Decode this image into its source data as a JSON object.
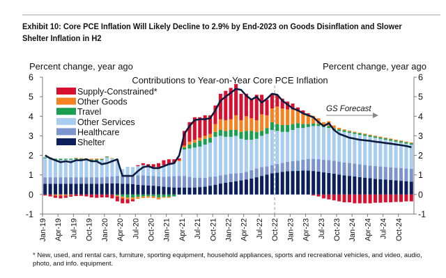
{
  "exhibit_title": "Exhibit 10: Core PCE Inflation Will Likely Decline to 2.9% by End-2023 on Goods Disinflation and Slower Shelter Inflation in H2",
  "footnote": "* New, used, and rental cars, furniture, sporting equipment, household appliances, sports and recreational vehicles, and video, audio, photo, and info. equipment.",
  "chart_data": {
    "type": "bar",
    "stacked": true,
    "title": "Contributions to Year-on-Year Core PCE Inflation",
    "ylabel_left": "Percent change, year ago",
    "ylabel_right": "Percent change, year ago",
    "ylim": [
      -1,
      6
    ],
    "yticks": [
      -1,
      0,
      1,
      2,
      3,
      4,
      5,
      6
    ],
    "legend_position": "top-left",
    "annotation": "GS Forecast",
    "forecast_start": "Oct-22",
    "x_start": "Jan-19",
    "x_end": "Dec-24",
    "xtick_labels": [
      "Jan-19",
      "Apr-19",
      "Jul-19",
      "Oct-19",
      "Jan-20",
      "Apr-20",
      "Jul-20",
      "Oct-20",
      "Jan-21",
      "Apr-21",
      "Jul-21",
      "Oct-21",
      "Jan-22",
      "Apr-22",
      "Jul-22",
      "Oct-22",
      "Jan-23",
      "Apr-23",
      "Jul-23",
      "Oct-23",
      "Jan-24",
      "Apr-24",
      "Jul-24",
      "Oct-24"
    ],
    "series": [
      {
        "name": "Shelter",
        "color": "#0b1f5c",
        "values": [
          0.55,
          0.55,
          0.55,
          0.55,
          0.55,
          0.55,
          0.55,
          0.55,
          0.55,
          0.55,
          0.55,
          0.55,
          0.57,
          0.57,
          0.57,
          0.55,
          0.55,
          0.53,
          0.5,
          0.48,
          0.46,
          0.45,
          0.42,
          0.4,
          0.38,
          0.36,
          0.35,
          0.35,
          0.35,
          0.36,
          0.38,
          0.4,
          0.45,
          0.5,
          0.56,
          0.6,
          0.64,
          0.68,
          0.72,
          0.77,
          0.82,
          0.88,
          0.95,
          1.02,
          1.08,
          1.12,
          1.16,
          1.19,
          1.2,
          1.21,
          1.22,
          1.22,
          1.2,
          1.17,
          1.13,
          1.1,
          1.06,
          1.02,
          0.98,
          0.95,
          0.92,
          0.89,
          0.86,
          0.83,
          0.8,
          0.78,
          0.76,
          0.74,
          0.72,
          0.7,
          0.68,
          0.66
        ]
      },
      {
        "name": "Healthcare",
        "color": "#7b95cd",
        "values": [
          0.33,
          0.33,
          0.33,
          0.33,
          0.33,
          0.33,
          0.33,
          0.33,
          0.33,
          0.33,
          0.33,
          0.33,
          0.33,
          0.35,
          0.38,
          0.4,
          0.42,
          0.45,
          0.48,
          0.5,
          0.5,
          0.5,
          0.5,
          0.5,
          0.55,
          0.58,
          0.6,
          0.6,
          0.55,
          0.5,
          0.48,
          0.45,
          0.45,
          0.42,
          0.42,
          0.42,
          0.42,
          0.4,
          0.38,
          0.38,
          0.42,
          0.45,
          0.45,
          0.42,
          0.42,
          0.44,
          0.46,
          0.48,
          0.5,
          0.52,
          0.55,
          0.6,
          0.62,
          0.64,
          0.65,
          0.66,
          0.66,
          0.66,
          0.66,
          0.66,
          0.66,
          0.66,
          0.65,
          0.65,
          0.65,
          0.65,
          0.65,
          0.65,
          0.65,
          0.65,
          0.65,
          0.65
        ]
      },
      {
        "name": "Other Services",
        "color": "#a9cdf0",
        "values": [
          0.97,
          0.95,
          0.9,
          0.88,
          0.9,
          0.9,
          0.92,
          0.92,
          0.92,
          0.85,
          0.85,
          0.88,
          1.0,
          0.93,
          0.85,
          0.35,
          0.45,
          0.42,
          0.47,
          0.52,
          0.49,
          0.45,
          0.48,
          0.6,
          0.62,
          0.66,
          0.75,
          1.35,
          1.45,
          1.54,
          1.59,
          1.7,
          1.75,
          2.03,
          2.02,
          1.93,
          1.89,
          1.92,
          1.75,
          1.65,
          1.56,
          1.52,
          1.6,
          1.66,
          1.8,
          1.69,
          1.58,
          1.53,
          1.6,
          1.67,
          1.63,
          1.63,
          1.68,
          1.69,
          1.67,
          1.64,
          1.58,
          1.57,
          1.56,
          1.54,
          1.52,
          1.5,
          1.49,
          1.47,
          1.45,
          1.42,
          1.39,
          1.36,
          1.33,
          1.3,
          1.27,
          1.24
        ]
      },
      {
        "name": "Travel",
        "color": "#1a9e50",
        "values": [
          0.05,
          0.05,
          0.05,
          0.07,
          0.05,
          0.05,
          0.05,
          0.03,
          0.03,
          0.05,
          0.06,
          0.05,
          0.03,
          0.0,
          -0.05,
          -0.1,
          -0.15,
          -0.15,
          -0.12,
          -0.1,
          -0.08,
          -0.1,
          -0.15,
          -0.12,
          -0.12,
          -0.1,
          0.0,
          0.1,
          0.2,
          0.25,
          0.3,
          0.3,
          0.25,
          0.25,
          0.3,
          0.3,
          0.35,
          0.3,
          0.35,
          0.45,
          0.45,
          0.35,
          0.25,
          0.3,
          0.4,
          0.35,
          0.35,
          0.35,
          0.3,
          0.25,
          0.2,
          0.15,
          0.12,
          0.1,
          0.1,
          0.1,
          0.08,
          0.08,
          0.08,
          0.07,
          0.07,
          0.07,
          0.07,
          0.07,
          0.07,
          0.07,
          0.07,
          0.07,
          0.07,
          0.07,
          0.07,
          0.07
        ]
      },
      {
        "name": "Other Goods",
        "color": "#f5821f",
        "values": [
          0.0,
          0.02,
          -0.05,
          -0.05,
          -0.05,
          -0.03,
          0.03,
          0.03,
          0.02,
          0.05,
          0.05,
          0.02,
          0.02,
          0.02,
          -0.05,
          -0.1,
          -0.1,
          -0.1,
          -0.1,
          -0.08,
          -0.08,
          -0.08,
          -0.1,
          -0.05,
          -0.05,
          0.0,
          0.05,
          0.1,
          0.15,
          0.15,
          0.15,
          0.15,
          0.2,
          0.4,
          0.55,
          0.55,
          0.55,
          0.75,
          0.6,
          0.75,
          0.65,
          0.6,
          0.85,
          0.65,
          0.7,
          0.9,
          0.85,
          0.8,
          0.75,
          0.6,
          0.55,
          0.5,
          0.4,
          0.3,
          0.15,
          0.25,
          0.15,
          0.08,
          0.05,
          0.05,
          0.04,
          0.04,
          0.04,
          0.04,
          0.04,
          0.04,
          0.04,
          0.04,
          0.04,
          0.04,
          0.04,
          0.04
        ]
      },
      {
        "name": "Supply-Constrained*",
        "color": "#d7102f",
        "values": [
          -0.05,
          -0.1,
          -0.12,
          -0.15,
          -0.12,
          -0.08,
          -0.08,
          -0.07,
          -0.1,
          -0.15,
          -0.17,
          -0.15,
          -0.15,
          -0.2,
          -0.25,
          -0.25,
          -0.2,
          -0.1,
          0.05,
          0.1,
          0.1,
          0.15,
          0.2,
          0.25,
          0.25,
          0.2,
          0.1,
          0.75,
          1.0,
          1.15,
          1.05,
          1.05,
          0.95,
          0.95,
          1.3,
          1.5,
          1.6,
          1.6,
          1.35,
          1.15,
          1.0,
          1.3,
          1.0,
          0.8,
          0.75,
          0.6,
          0.5,
          0.4,
          0.3,
          0.2,
          0.15,
          0.05,
          -0.05,
          -0.1,
          -0.2,
          -0.25,
          -0.3,
          -0.35,
          -0.4,
          -0.4,
          -0.45,
          -0.45,
          -0.45,
          -0.45,
          -0.42,
          -0.42,
          -0.4,
          -0.4,
          -0.38,
          -0.38,
          -0.35,
          -0.35
        ]
      }
    ],
    "line": {
      "name": "Core PCE",
      "color": "#0d1b3e",
      "values": [
        2.0,
        1.85,
        1.75,
        1.65,
        1.7,
        1.65,
        1.75,
        1.75,
        1.8,
        1.7,
        1.7,
        1.55,
        1.6,
        1.7,
        1.8,
        0.95,
        0.95,
        0.95,
        1.2,
        1.4,
        1.45,
        1.35,
        1.35,
        1.45,
        1.55,
        1.6,
        2.0,
        3.1,
        3.5,
        3.8,
        3.85,
        3.85,
        3.9,
        4.3,
        4.8,
        5.0,
        5.2,
        5.4,
        5.35,
        5.05,
        4.85,
        5.0,
        4.7,
        4.9,
        5.15,
        5.1,
        4.8,
        4.6,
        4.4,
        4.3,
        4.15,
        4.05,
        3.95,
        3.7,
        3.5,
        3.65,
        3.3,
        3.1,
        3.0,
        2.9,
        2.85,
        2.8,
        2.77,
        2.74,
        2.7,
        2.67,
        2.63,
        2.6,
        2.56,
        2.52,
        2.48,
        2.42
      ]
    }
  }
}
